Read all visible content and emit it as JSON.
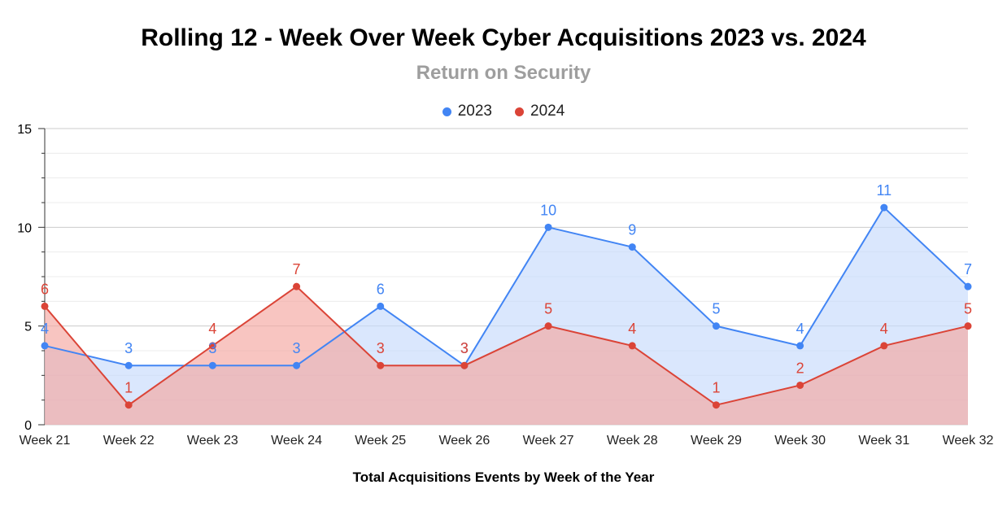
{
  "chart_data": {
    "type": "area",
    "title": "Rolling 12 - Week Over Week Cyber Acquisitions 2023 vs. 2024",
    "subtitle": "Return on Security",
    "xlabel": "Total Acquisitions Events by Week of the Year",
    "ylabel": "",
    "categories": [
      "Week 21",
      "Week 22",
      "Week 23",
      "Week 24",
      "Week 25",
      "Week 26",
      "Week 27",
      "Week 28",
      "Week 29",
      "Week 30",
      "Week 31",
      "Week 32"
    ],
    "ylim": [
      0,
      15
    ],
    "yticks": [
      "0",
      "5",
      "10",
      "15"
    ],
    "grid": true,
    "legend_position": "top",
    "series": [
      {
        "name": "2023",
        "color": "#4285f4",
        "fill": "#c6dafc",
        "values": [
          4,
          3,
          3,
          3,
          6,
          3,
          10,
          9,
          5,
          4,
          11,
          7
        ]
      },
      {
        "name": "2024",
        "color": "#db4437",
        "fill": "#f4a69f",
        "values": [
          6,
          1,
          4,
          7,
          3,
          3,
          5,
          4,
          1,
          2,
          4,
          5
        ]
      }
    ]
  }
}
